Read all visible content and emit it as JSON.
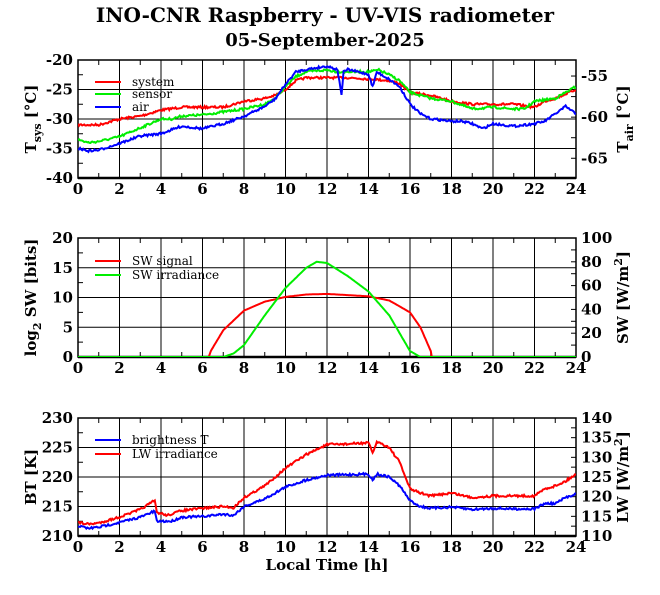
{
  "title": "INO-CNR Raspberry - UV-VIS radiometer",
  "date": "05-September-2025",
  "chart_data": [
    {
      "type": "line",
      "ylabel_left": {
        "base": "T",
        "sub": "sys",
        "rest": " [°C]"
      },
      "ylabel_right": {
        "base": "T",
        "sub": "air",
        "rest": " [°C]"
      },
      "xlim": [
        0,
        24
      ],
      "ylim_left": [
        -40,
        -20
      ],
      "ylim_right": [
        -67.4,
        -53.05
      ],
      "xticks": [
        0,
        2,
        4,
        6,
        8,
        10,
        12,
        14,
        16,
        18,
        20,
        22,
        24
      ],
      "yticks_left": [
        -40,
        -35,
        -30,
        -25,
        -20
      ],
      "yticks_right": [
        -65,
        -60,
        -55
      ],
      "legend_position": "top-left",
      "series": [
        {
          "name": "system",
          "color": "#ff0000",
          "axis": "left",
          "x": [
            0,
            1,
            1.5,
            2,
            3,
            3.5,
            4,
            5,
            6,
            7,
            8,
            9,
            9.5,
            10,
            10.5,
            11,
            12,
            13,
            14,
            15,
            15.5,
            16,
            17,
            18,
            19,
            20,
            21,
            22,
            22.5,
            23,
            24
          ],
          "y": [
            -31,
            -31,
            -30.5,
            -30,
            -29.5,
            -29,
            -28.5,
            -28,
            -28,
            -28,
            -27,
            -26.5,
            -26,
            -25,
            -23.5,
            -23,
            -23,
            -23,
            -23.2,
            -23.5,
            -24,
            -25.5,
            -26,
            -27,
            -27.5,
            -27.5,
            -27.5,
            -28,
            -27,
            -26.5,
            -25
          ]
        },
        {
          "name": "sensor",
          "color": "#00ee00",
          "axis": "left",
          "x": [
            0,
            0.5,
            1,
            2,
            3,
            4,
            4.5,
            5,
            6,
            7,
            8,
            9,
            9.5,
            10,
            10.5,
            11,
            12,
            12.5,
            13,
            14,
            14.5,
            15,
            15.5,
            16,
            17,
            18,
            19,
            20,
            21,
            21.5,
            22,
            23,
            23.5,
            24
          ],
          "y": [
            -33.5,
            -34,
            -33.8,
            -33,
            -31.5,
            -30,
            -30,
            -29.5,
            -29.3,
            -28.8,
            -28.3,
            -27.5,
            -26.5,
            -24.5,
            -22.8,
            -22,
            -21.7,
            -22,
            -22,
            -22,
            -21.7,
            -22.5,
            -23.5,
            -25.5,
            -26.5,
            -27,
            -28.3,
            -28,
            -28.3,
            -28.3,
            -27,
            -26.5,
            -25.5,
            -24.5
          ]
        },
        {
          "name": "air",
          "color": "#0000ff",
          "axis": "right",
          "x": [
            0,
            0.5,
            1,
            2,
            3,
            4,
            5,
            6,
            7,
            8,
            9,
            9.5,
            10,
            10.5,
            11,
            12,
            12.5,
            12.7,
            12.8,
            13,
            14,
            14.2,
            14.4,
            15,
            15.5,
            16,
            16.5,
            17,
            18,
            18.5,
            19,
            19.5,
            20,
            21,
            22,
            22.5,
            23,
            23.5,
            24
          ],
          "y": [
            -63.8,
            -64.1,
            -64.0,
            -63.2,
            -62.3,
            -62.0,
            -61.1,
            -61.4,
            -60.8,
            -59.9,
            -58.7,
            -57.8,
            -56.0,
            -54.5,
            -54.2,
            -53.8,
            -54.2,
            -57.2,
            -54.5,
            -54.2,
            -54.8,
            -56.3,
            -54.5,
            -55.4,
            -56.3,
            -58.4,
            -59.6,
            -60.2,
            -60.5,
            -60.5,
            -60.8,
            -61.4,
            -60.8,
            -61.1,
            -60.8,
            -60.5,
            -59.6,
            -58.7,
            -59.6
          ]
        }
      ]
    },
    {
      "type": "line",
      "ylabel_left": {
        "base": "log",
        "sub": "2",
        "rest": " SW [bits]"
      },
      "ylabel_right": {
        "base": "SW [W/m",
        "sup": "2",
        "rest": "]"
      },
      "xlim": [
        0,
        24
      ],
      "ylim_left": [
        0,
        20
      ],
      "ylim_right": [
        0,
        100
      ],
      "xticks": [
        0,
        2,
        4,
        6,
        8,
        10,
        12,
        14,
        16,
        18,
        20,
        22,
        24
      ],
      "yticks_left": [
        0,
        5,
        10,
        15,
        20
      ],
      "yticks_right": [
        0,
        20,
        40,
        60,
        80,
        100
      ],
      "legend_position": "top-left",
      "series": [
        {
          "name": "SW signal",
          "color": "#ff0000",
          "axis": "left",
          "x": [
            0,
            6.3,
            6.4,
            7,
            8,
            9,
            10,
            11,
            12,
            13,
            14,
            15,
            16,
            16.5,
            17,
            17.05,
            24
          ],
          "y": [
            0,
            0,
            1,
            4.5,
            7.8,
            9.3,
            10.1,
            10.5,
            10.6,
            10.4,
            10.2,
            9.5,
            7.5,
            5,
            1,
            0,
            0
          ]
        },
        {
          "name": "SW irradiance",
          "color": "#00ee00",
          "axis": "right",
          "x": [
            0,
            7,
            7.5,
            8,
            9,
            10,
            11,
            11.5,
            12,
            13,
            14,
            15,
            15.5,
            16,
            16.5,
            24
          ],
          "y": [
            0,
            0,
            3,
            10,
            35,
            58,
            75,
            80,
            79,
            68,
            55,
            35,
            20,
            5,
            0,
            0
          ]
        }
      ]
    },
    {
      "type": "line",
      "ylabel_left": {
        "base": "BT [K]"
      },
      "ylabel_right": {
        "base": "LW [W/m",
        "sup": "2",
        "rest": "]"
      },
      "xlabel": "Local Time [h]",
      "xlim": [
        0,
        24
      ],
      "ylim_left": [
        210,
        230
      ],
      "ylim_right": [
        110,
        140
      ],
      "xticks": [
        0,
        2,
        4,
        6,
        8,
        10,
        12,
        14,
        16,
        18,
        20,
        22,
        24
      ],
      "yticks_left": [
        210,
        215,
        220,
        225,
        230
      ],
      "yticks_right": [
        110,
        115,
        120,
        125,
        130,
        135,
        140
      ],
      "legend_position": "top-left",
      "series": [
        {
          "name": "brightness T",
          "color": "#0000ff",
          "axis": "left",
          "x": [
            0,
            0.5,
            1,
            2,
            3,
            3.7,
            3.8,
            4.5,
            5,
            6,
            7,
            7.5,
            8,
            9,
            10,
            11,
            12,
            13,
            14,
            14.2,
            14.4,
            15,
            15.5,
            16,
            16.5,
            17,
            18,
            19,
            20,
            21,
            22,
            22.5,
            23,
            23.5,
            24
          ],
          "y": [
            211.7,
            211.3,
            211.5,
            212.3,
            213.2,
            214.2,
            212.5,
            212.5,
            213.2,
            213.3,
            213.7,
            213.5,
            215,
            216.3,
            218.3,
            219.5,
            220.3,
            220.4,
            220.5,
            219.5,
            220.5,
            220,
            218.5,
            216,
            215,
            214.7,
            214.9,
            214.5,
            214.7,
            214.6,
            214.6,
            215.5,
            215.5,
            216.5,
            217.2
          ]
        },
        {
          "name": "LW irradiance",
          "color": "#ff0000",
          "axis": "right",
          "x": [
            0,
            0.5,
            1,
            2,
            3,
            3.7,
            3.8,
            4.3,
            5,
            6,
            7,
            7.5,
            8,
            9,
            10,
            11,
            12,
            13,
            14,
            14.2,
            14.4,
            15,
            15.5,
            16,
            16.5,
            17,
            18,
            19,
            20,
            21,
            22,
            22.5,
            23,
            23.5,
            24
          ],
          "y": [
            113.45,
            113,
            113.3,
            114.8,
            116.75,
            119,
            116,
            115.25,
            116.45,
            117.05,
            117.5,
            117.2,
            119.75,
            122.75,
            127.25,
            130.7,
            133.25,
            133.4,
            133.7,
            131,
            134,
            132.5,
            128.75,
            122,
            120.95,
            120.2,
            120.95,
            119.75,
            120.2,
            120.2,
            120.2,
            122,
            122.75,
            123.95,
            125.75
          ]
        }
      ]
    }
  ]
}
